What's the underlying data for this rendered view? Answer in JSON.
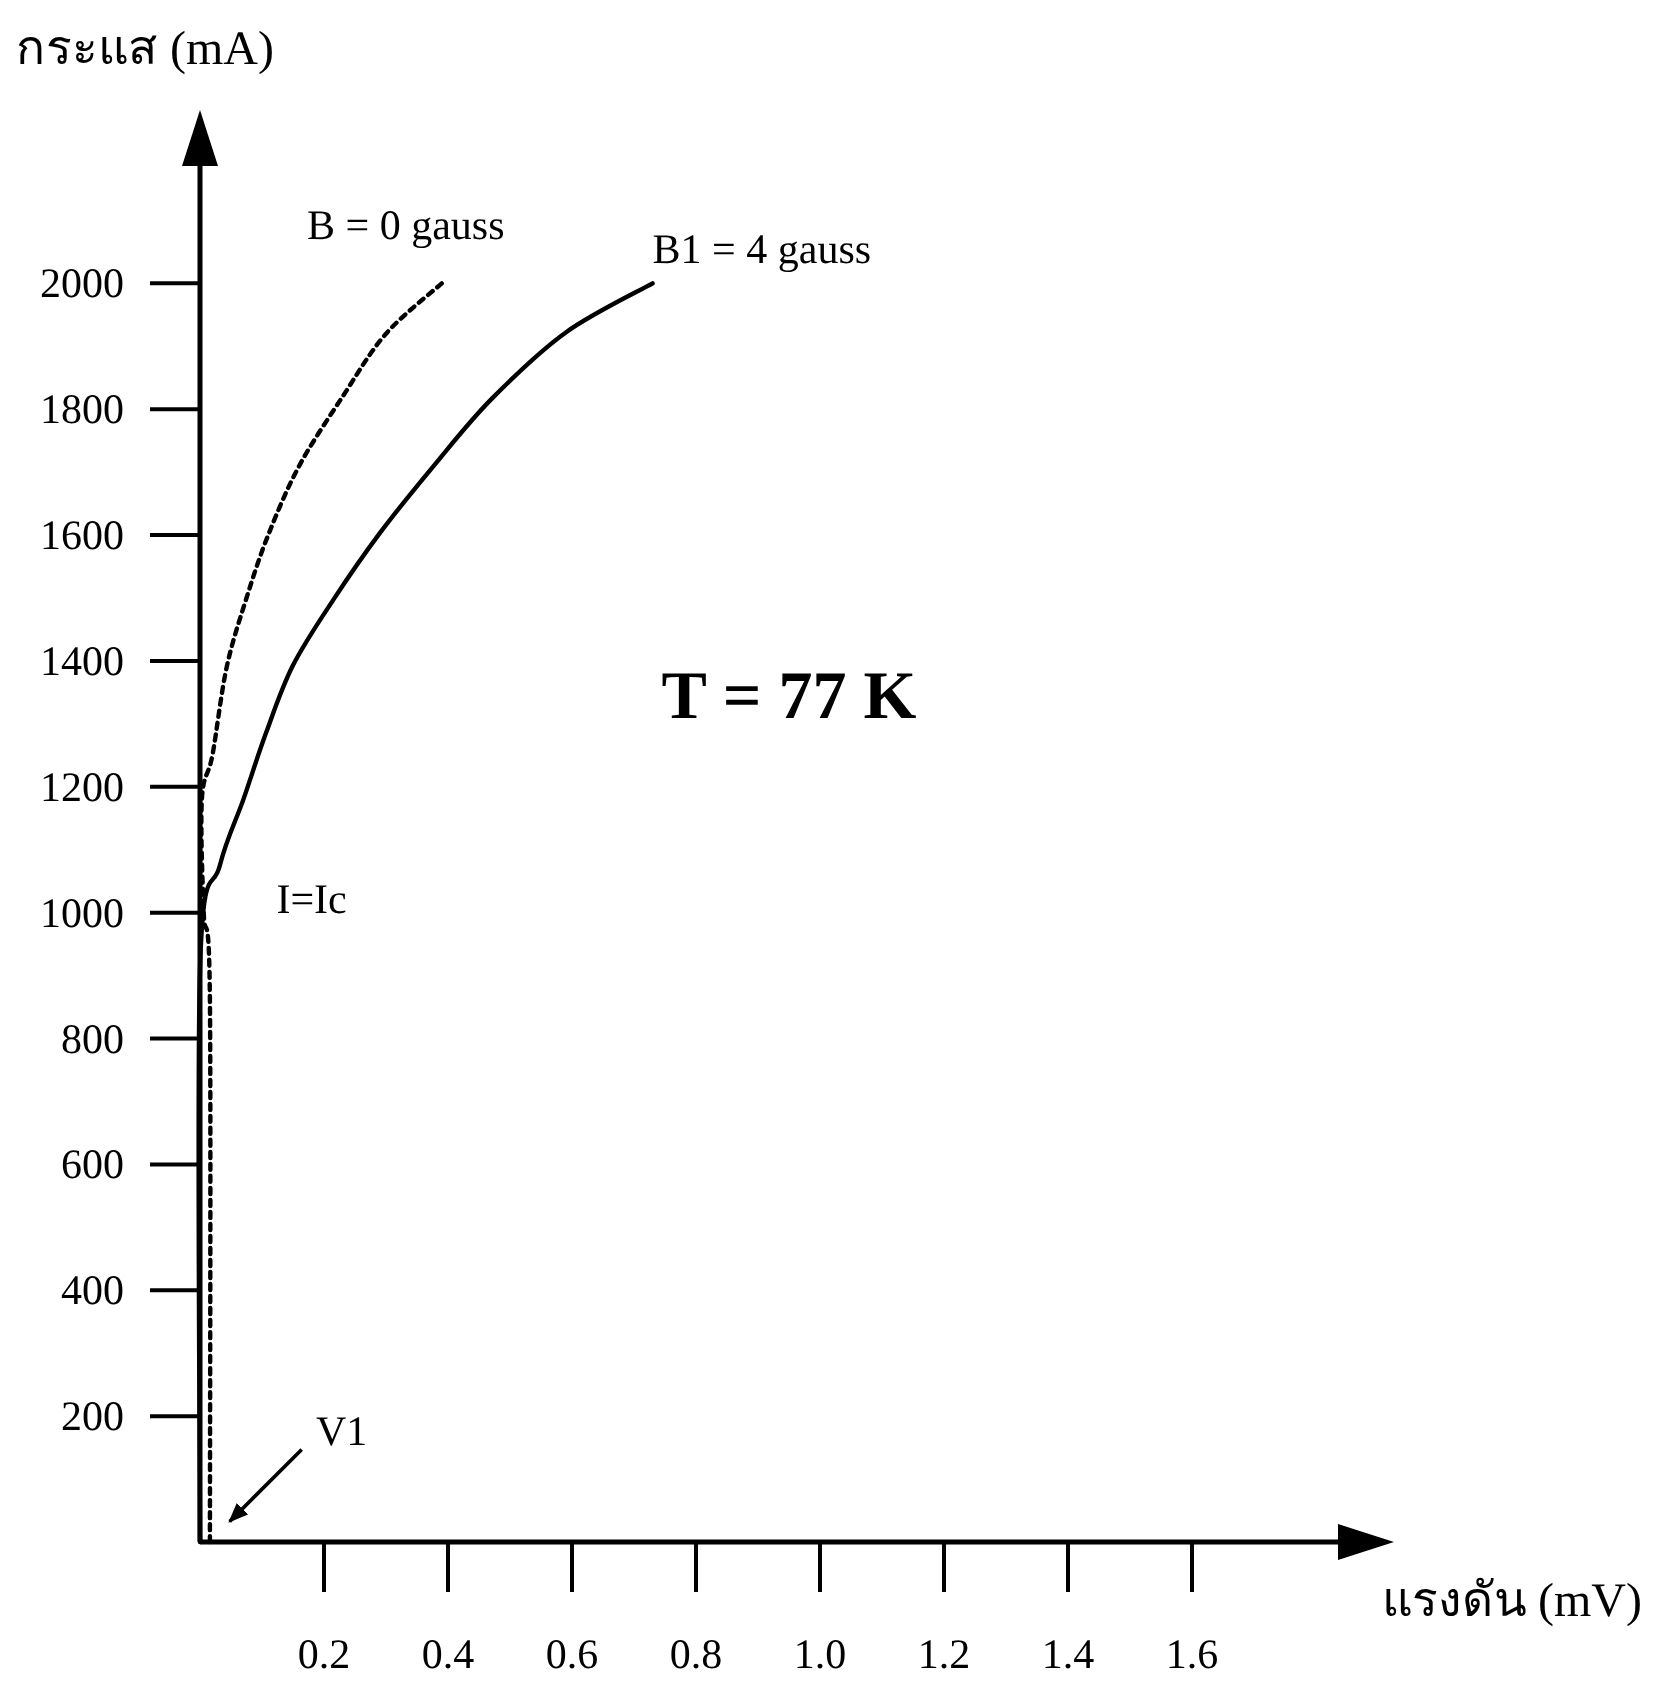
{
  "chart_data": {
    "type": "line",
    "xlabel": "แรงดัน (mV)",
    "ylabel": "กระแส (mA)",
    "xlim": [
      0,
      1.9
    ],
    "ylim": [
      0,
      2250
    ],
    "xticks": [
      0.2,
      0.4,
      0.6,
      0.8,
      {
        "value": 1.0,
        "label": "1.0"
      },
      1.2,
      1.4,
      1.6
    ],
    "yticks": [
      200,
      400,
      600,
      800,
      1000,
      1200,
      1400,
      1600,
      1800,
      2000
    ],
    "grid": false,
    "legend": false,
    "marker": "none",
    "series": [
      {
        "name": "B = 0 gauss",
        "color": "#000000",
        "line_style": "dotted",
        "x": [
          0.016,
          0.016,
          0.006,
          0.003,
          0.02,
          0.043,
          0.075,
          0.11,
          0.16,
          0.23,
          0.3,
          0.39
        ],
        "values": [
          0,
          860,
          1000,
          1180,
          1250,
          1390,
          1500,
          1600,
          1710,
          1820,
          1920,
          2000
        ]
      },
      {
        "name": "B1 = 4 gauss",
        "color": "#000000",
        "line_style": "solid",
        "x": [
          0,
          0,
          0.032,
          0.07,
          0.107,
          0.15,
          0.215,
          0.29,
          0.377,
          0.47,
          0.59,
          0.73
        ],
        "values": [
          0,
          910,
          1075,
          1180,
          1287,
          1393,
          1497,
          1603,
          1710,
          1816,
          1922,
          2000
        ]
      }
    ],
    "annotations": [
      "T = 77 K",
      "I=Ic",
      {
        "text": "V1",
        "x": 0.035,
        "y": 20
      }
    ]
  }
}
